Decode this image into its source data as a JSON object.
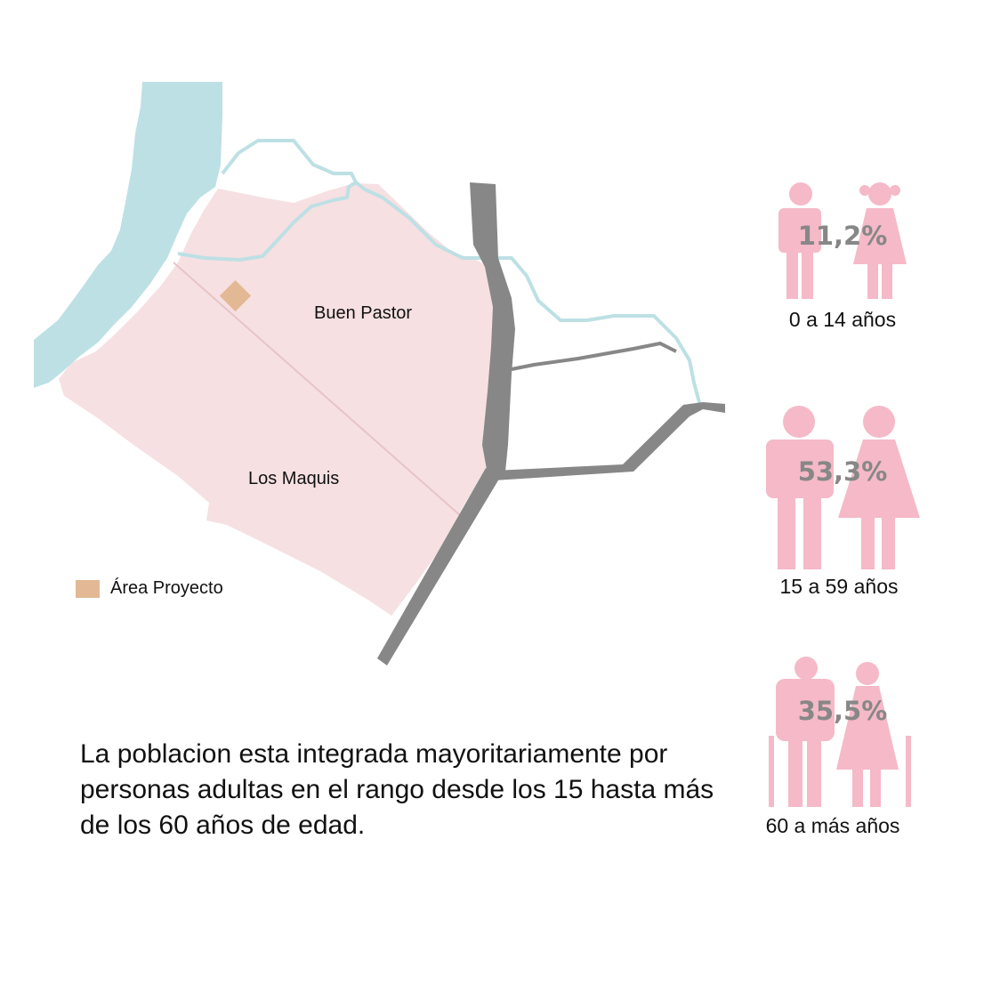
{
  "map": {
    "places": [
      "Buen Pastor",
      "Los Maquis"
    ],
    "legend": {
      "label": "Área Proyecto"
    }
  },
  "caption": "La poblacion esta integrada mayoritariamente por personas adultas en el rango desde los 15 hasta más de los 60 años de edad.",
  "groups": [
    {
      "percent": "11,2%",
      "label": "0 a 14 años",
      "icon": "child-pair-icon"
    },
    {
      "percent": "53,3%",
      "label": "15 a 59 años",
      "icon": "adult-pair-icon"
    },
    {
      "percent": "35,5%",
      "label": "60 a más años",
      "icon": "elderly-pair-icon"
    }
  ],
  "colors": {
    "district": "#f6e0e2",
    "river": "#bde0e4",
    "road": "#878787",
    "project_area": "#e2b994",
    "figure": "#f5b9c7",
    "percent_text": "#878787",
    "text": "#111111"
  }
}
